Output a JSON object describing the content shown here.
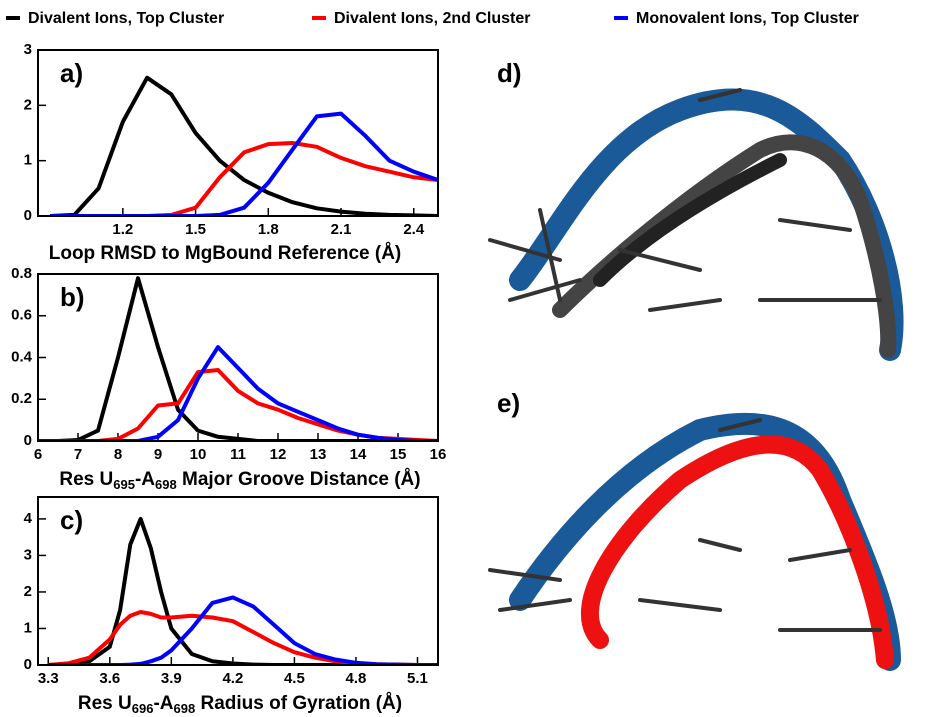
{
  "chart_data": [
    {
      "type": "line",
      "panel": "a)",
      "xlabel": [
        "Loop RMSD to MgBound Reference (Å)"
      ],
      "x": [
        0.9,
        1.0,
        1.1,
        1.2,
        1.3,
        1.4,
        1.5,
        1.6,
        1.7,
        1.8,
        1.9,
        2.0,
        2.1,
        2.2,
        2.3,
        2.4,
        2.5
      ],
      "xlim": [
        0.85,
        2.5
      ],
      "xticks": [
        1.2,
        1.5,
        1.8,
        2.1,
        2.4
      ],
      "ylim": [
        0,
        3
      ],
      "yticks": [
        0,
        1,
        2,
        3
      ],
      "series": [
        {
          "name": "Divalent Ions, Top Cluster",
          "color": "#000000",
          "values": [
            0,
            0.02,
            0.5,
            1.7,
            2.5,
            2.2,
            1.5,
            1.0,
            0.65,
            0.42,
            0.25,
            0.14,
            0.08,
            0.04,
            0.02,
            0.01,
            0
          ]
        },
        {
          "name": "Divalent Ions, 2nd Cluster",
          "color": "#ff0000",
          "values": [
            0,
            0,
            0,
            0,
            0,
            0.02,
            0.15,
            0.7,
            1.15,
            1.3,
            1.32,
            1.25,
            1.05,
            0.9,
            0.8,
            0.7,
            0.65
          ]
        },
        {
          "name": "Monovalent Ions, Top Cluster",
          "color": "#0000ff",
          "values": [
            0,
            0,
            0,
            0,
            0,
            0,
            0,
            0.02,
            0.15,
            0.6,
            1.2,
            1.8,
            1.85,
            1.45,
            1.0,
            0.8,
            0.65
          ]
        }
      ]
    },
    {
      "type": "line",
      "panel": "b)",
      "xlabel": [
        "Res U",
        "695",
        "-A",
        "698",
        " Major Groove Distance (Å)"
      ],
      "x": [
        6,
        6.5,
        7,
        7.5,
        8,
        8.5,
        9,
        9.5,
        10,
        10.5,
        11,
        11.5,
        12,
        12.5,
        13,
        13.5,
        14,
        14.5,
        15,
        15.5,
        16
      ],
      "xlim": [
        6,
        16
      ],
      "xticks": [
        6,
        7,
        8,
        9,
        10,
        11,
        12,
        13,
        14,
        15,
        16
      ],
      "ylim": [
        0,
        0.8
      ],
      "yticks": [
        0,
        0.2,
        0.4,
        0.6,
        0.8
      ],
      "series": [
        {
          "color": "#000000",
          "values": [
            0,
            0,
            0.005,
            0.05,
            0.4,
            0.78,
            0.45,
            0.15,
            0.05,
            0.02,
            0.01,
            0,
            0,
            0,
            0,
            0,
            0,
            0,
            0,
            0,
            0
          ]
        },
        {
          "color": "#ff0000",
          "values": [
            0,
            0,
            0,
            0,
            0.01,
            0.06,
            0.17,
            0.18,
            0.33,
            0.34,
            0.24,
            0.18,
            0.15,
            0.11,
            0.08,
            0.05,
            0.03,
            0.015,
            0.01,
            0.005,
            0
          ]
        },
        {
          "color": "#0000ff",
          "values": [
            0,
            0,
            0,
            0,
            0,
            0,
            0.02,
            0.1,
            0.3,
            0.45,
            0.35,
            0.25,
            0.18,
            0.14,
            0.1,
            0.06,
            0.03,
            0.015,
            0.005,
            0,
            0
          ]
        }
      ]
    },
    {
      "type": "line",
      "panel": "c)",
      "xlabel": [
        "Res U",
        "696",
        "-A",
        "698",
        " Radius of Gyration (Å)"
      ],
      "x": [
        3.3,
        3.4,
        3.5,
        3.6,
        3.65,
        3.7,
        3.75,
        3.8,
        3.85,
        3.9,
        4.0,
        4.1,
        4.2,
        4.3,
        4.4,
        4.5,
        4.6,
        4.7,
        4.8,
        4.9,
        5.0,
        5.1,
        5.2
      ],
      "xlim": [
        3.25,
        5.2
      ],
      "xticks": [
        3.3,
        3.6,
        3.9,
        4.2,
        4.5,
        4.8,
        5.1
      ],
      "ylim": [
        0,
        4.6
      ],
      "yticks": [
        0,
        1,
        2,
        3,
        4
      ],
      "series": [
        {
          "color": "#000000",
          "values": [
            0,
            0.02,
            0.1,
            0.5,
            1.5,
            3.3,
            4.0,
            3.2,
            2.0,
            1.0,
            0.3,
            0.1,
            0.04,
            0.01,
            0,
            0,
            0,
            0,
            0,
            0,
            0,
            0,
            0
          ]
        },
        {
          "color": "#ff0000",
          "values": [
            0,
            0.05,
            0.2,
            0.7,
            1.1,
            1.35,
            1.45,
            1.4,
            1.3,
            1.3,
            1.35,
            1.3,
            1.2,
            0.9,
            0.6,
            0.35,
            0.2,
            0.1,
            0.05,
            0.02,
            0.01,
            0,
            0
          ]
        },
        {
          "color": "#0000ff",
          "values": [
            0,
            0,
            0,
            0,
            0,
            0.01,
            0.03,
            0.1,
            0.2,
            0.4,
            1.0,
            1.7,
            1.85,
            1.6,
            1.1,
            0.6,
            0.3,
            0.15,
            0.06,
            0.02,
            0.01,
            0,
            0
          ]
        }
      ]
    }
  ],
  "panels": [
    "d)",
    "e)"
  ]
}
